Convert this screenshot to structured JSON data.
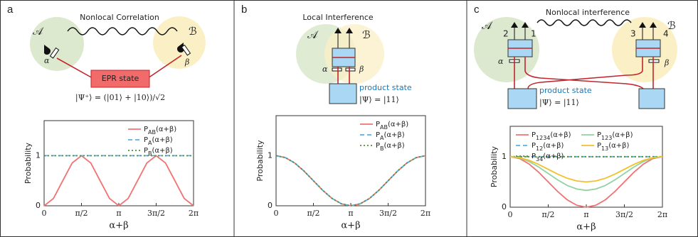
{
  "panel_labels": [
    "a",
    "b",
    "c"
  ],
  "diagrams": [
    {
      "title": "Nonlocal Correlation",
      "party_a": "𝒜",
      "party_b": "ℬ",
      "angle_a": "α",
      "angle_b": "β",
      "source": "EPR state",
      "state": "|Ψ⁺⟩ = (|01⟩ + |10⟩)/√2"
    },
    {
      "title": "Local Interference",
      "party_a": "𝒜",
      "party_b": "ℬ",
      "angle_a": "α",
      "angle_b": "β",
      "source": "product state",
      "state": "|Ψ⟩ = |11⟩"
    },
    {
      "title": "Nonlocal interference",
      "party_a": "𝒜",
      "party_b": "ℬ",
      "angle_a": "α",
      "angle_b": "β",
      "source": "product state",
      "state": "|Ψ⟩ = |11⟩",
      "detectors": [
        "2",
        "1",
        "3",
        "4"
      ]
    }
  ],
  "chart_data": [
    {
      "type": "line",
      "xlabel": "α+β",
      "ylabel": "Probability",
      "x": [
        0,
        0.393,
        0.785,
        1.178,
        1.571,
        1.963,
        2.356,
        2.749,
        3.142,
        3.534,
        3.927,
        4.32,
        4.712,
        5.105,
        5.498,
        5.89,
        6.283
      ],
      "series": [
        {
          "name": "PAB(α+β)",
          "color": "#f07272",
          "dash": "solid",
          "values": [
            0,
            0.146,
            0.5,
            0.854,
            1,
            0.854,
            0.5,
            0.146,
            0,
            0.146,
            0.5,
            0.854,
            1,
            0.854,
            0.5,
            0.146,
            0
          ]
        },
        {
          "name": "PA(α+β)",
          "color": "#5aaee8",
          "dash": "dashed",
          "values": [
            1,
            1,
            1,
            1,
            1,
            1,
            1,
            1,
            1,
            1,
            1,
            1,
            1,
            1,
            1,
            1,
            1
          ]
        },
        {
          "name": "PB(α+β)",
          "color": "#4f8f35",
          "dash": "dotted",
          "values": [
            1,
            1,
            1,
            1,
            1,
            1,
            1,
            1,
            1,
            1,
            1,
            1,
            1,
            1,
            1,
            1,
            1
          ]
        }
      ],
      "xlim": [
        0,
        6.283
      ],
      "xticks": [
        0,
        {
          "value": 1.571,
          "label": "π/2"
        },
        {
          "value": 3.142,
          "label": "π"
        },
        {
          "value": 4.712,
          "label": "3π/2"
        },
        {
          "value": 6.283,
          "label": "2π"
        }
      ],
      "ylim": [
        0,
        1.7
      ],
      "yticks": [
        0,
        1
      ],
      "legend": "upper-right",
      "legend_columns": 1
    },
    {
      "type": "line",
      "xlabel": "α+β",
      "ylabel": "Probability",
      "x": [
        0,
        0.393,
        0.785,
        1.178,
        1.571,
        1.963,
        2.356,
        2.749,
        3.142,
        3.534,
        3.927,
        4.32,
        4.712,
        5.105,
        5.498,
        5.89,
        6.283
      ],
      "series": [
        {
          "name": "PAB(α+β)",
          "color": "#f07272",
          "dash": "solid",
          "values": [
            1,
            0.962,
            0.854,
            0.691,
            0.5,
            0.309,
            0.146,
            0.038,
            0,
            0.038,
            0.146,
            0.309,
            0.5,
            0.691,
            0.854,
            0.962,
            1
          ]
        },
        {
          "name": "PA(α+β)",
          "color": "#5aaee8",
          "dash": "dashed",
          "values": [
            1,
            0.962,
            0.854,
            0.691,
            0.5,
            0.309,
            0.146,
            0.038,
            0,
            0.038,
            0.146,
            0.309,
            0.5,
            0.691,
            0.854,
            0.962,
            1
          ]
        },
        {
          "name": "PB(α+β)",
          "color": "#4f8f35",
          "dash": "dotted",
          "values": [
            1,
            0.962,
            0.854,
            0.691,
            0.5,
            0.309,
            0.146,
            0.038,
            0,
            0.038,
            0.146,
            0.309,
            0.5,
            0.691,
            0.854,
            0.962,
            1
          ]
        }
      ],
      "xlim": [
        0,
        6.283
      ],
      "xticks": [
        0,
        {
          "value": 1.571,
          "label": "π/2"
        },
        {
          "value": 3.142,
          "label": "π"
        },
        {
          "value": 4.712,
          "label": "3π/2"
        },
        {
          "value": 6.283,
          "label": "2π"
        }
      ],
      "ylim": [
        0,
        1.8
      ],
      "yticks": [
        0,
        1
      ],
      "legend": "upper-right",
      "legend_columns": 1
    },
    {
      "type": "line",
      "xlabel": "α+β",
      "ylabel": "Probability",
      "x": [
        0,
        0.393,
        0.785,
        1.178,
        1.571,
        1.963,
        2.356,
        2.749,
        3.142,
        3.534,
        3.927,
        4.32,
        4.712,
        5.105,
        5.498,
        5.89,
        6.283
      ],
      "series": [
        {
          "name": "P1234(α+β)",
          "color": "#f07272",
          "dash": "solid",
          "values": [
            1,
            0.962,
            0.854,
            0.691,
            0.5,
            0.309,
            0.146,
            0.038,
            0,
            0.038,
            0.146,
            0.309,
            0.5,
            0.691,
            0.854,
            0.962,
            1
          ]
        },
        {
          "name": "P12(α+β)",
          "color": "#5aaee8",
          "dash": "dashed",
          "values": [
            1,
            1,
            1,
            1,
            1,
            1,
            1,
            1,
            1,
            1,
            1,
            1,
            1,
            1,
            1,
            1,
            1
          ]
        },
        {
          "name": "P34(α+β)",
          "color": "#4f8f35",
          "dash": "dotted",
          "values": [
            1,
            1,
            1,
            1,
            1,
            1,
            1,
            1,
            1,
            1,
            1,
            1,
            1,
            1,
            1,
            1,
            1
          ]
        },
        {
          "name": "P123(α+β)",
          "color": "#92d3a2",
          "dash": "solid",
          "values": [
            1,
            0.975,
            0.902,
            0.794,
            0.667,
            0.539,
            0.431,
            0.359,
            0.333,
            0.359,
            0.431,
            0.539,
            0.667,
            0.794,
            0.902,
            0.975,
            1
          ]
        },
        {
          "name": "P13(α+β)",
          "color": "#f2c12a",
          "dash": "solid",
          "values": [
            1,
            0.981,
            0.927,
            0.846,
            0.75,
            0.654,
            0.573,
            0.519,
            0.5,
            0.519,
            0.573,
            0.654,
            0.75,
            0.846,
            0.927,
            0.981,
            1
          ]
        }
      ],
      "xlim": [
        0,
        6.283
      ],
      "xticks": [
        0,
        {
          "value": 1.571,
          "label": "π/2"
        },
        {
          "value": 3.142,
          "label": "π"
        },
        {
          "value": 4.712,
          "label": "3π/2"
        },
        {
          "value": 6.283,
          "label": "2π"
        }
      ],
      "ylim": [
        0,
        1.6
      ],
      "yticks": [
        0,
        1
      ],
      "legend": "upper-left",
      "legend_columns": 2
    }
  ]
}
